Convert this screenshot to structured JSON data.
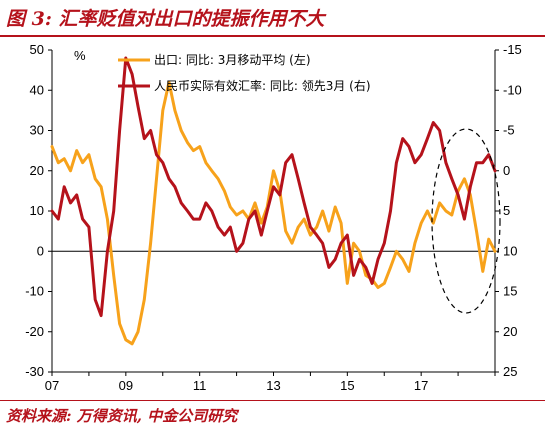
{
  "title": "图 3: 汇率贬值对出口的提振作用不大",
  "source": "资料来源: 万得资讯, 中金公司研究",
  "chart_data": {
    "type": "line",
    "unit_label": "%",
    "left_axis": {
      "ticks": [
        50,
        40,
        30,
        20,
        10,
        0,
        -10,
        -20,
        -30
      ],
      "range": [
        -30,
        50
      ]
    },
    "right_axis": {
      "ticks": [
        -15,
        -10,
        -5,
        0,
        5,
        10,
        15,
        20,
        25
      ],
      "range": [
        -15,
        25
      ],
      "inverted": true
    },
    "x_ticks": [
      "07",
      "09",
      "11",
      "13",
      "15",
      "17"
    ],
    "x_range": [
      2007.0,
      2019.0
    ],
    "colors": {
      "export": "#f7a21b",
      "reer": "#b5121b"
    },
    "series": [
      {
        "name": "出口: 同比: 3月移动平均 (左)",
        "axis": "left",
        "x": [
          2007.0,
          2007.17,
          2007.33,
          2007.5,
          2007.67,
          2007.83,
          2008.0,
          2008.17,
          2008.33,
          2008.5,
          2008.67,
          2008.83,
          2009.0,
          2009.17,
          2009.33,
          2009.5,
          2009.67,
          2009.83,
          2010.0,
          2010.17,
          2010.33,
          2010.5,
          2010.67,
          2010.83,
          2011.0,
          2011.17,
          2011.33,
          2011.5,
          2011.67,
          2011.83,
          2012.0,
          2012.17,
          2012.33,
          2012.5,
          2012.67,
          2012.83,
          2013.0,
          2013.17,
          2013.33,
          2013.5,
          2013.67,
          2013.83,
          2014.0,
          2014.17,
          2014.33,
          2014.5,
          2014.67,
          2014.83,
          2015.0,
          2015.17,
          2015.33,
          2015.5,
          2015.67,
          2015.83,
          2016.0,
          2016.17,
          2016.33,
          2016.5,
          2016.67,
          2016.83,
          2017.0,
          2017.17,
          2017.33,
          2017.5,
          2017.67,
          2017.83,
          2018.0,
          2018.17,
          2018.33,
          2018.5,
          2018.67,
          2018.83,
          2019.0
        ],
        "values": [
          26,
          22,
          23,
          20,
          25,
          22,
          24,
          18,
          16,
          8,
          -6,
          -18,
          -22,
          -23,
          -20,
          -12,
          2,
          18,
          35,
          42,
          35,
          30,
          27,
          25,
          26,
          22,
          20,
          18,
          15,
          11,
          9,
          10,
          8,
          12,
          7,
          11,
          20,
          15,
          5,
          2,
          6,
          8,
          4,
          6,
          10,
          5,
          11,
          7,
          -8,
          2,
          0,
          -6,
          -7,
          -9,
          -8,
          -4,
          0,
          -2,
          -5,
          2,
          7,
          10,
          7,
          12,
          10,
          9,
          15,
          18,
          14,
          5,
          -5,
          3,
          0
        ]
      },
      {
        "name": "人民币实际有效汇率: 同比: 领先3月 (右)",
        "axis": "right",
        "x": [
          2007.0,
          2007.17,
          2007.33,
          2007.5,
          2007.67,
          2007.83,
          2008.0,
          2008.17,
          2008.33,
          2008.5,
          2008.67,
          2008.83,
          2009.0,
          2009.17,
          2009.33,
          2009.5,
          2009.67,
          2009.83,
          2010.0,
          2010.17,
          2010.33,
          2010.5,
          2010.67,
          2010.83,
          2011.0,
          2011.17,
          2011.33,
          2011.5,
          2011.67,
          2011.83,
          2012.0,
          2012.17,
          2012.33,
          2012.5,
          2012.67,
          2012.83,
          2013.0,
          2013.17,
          2013.33,
          2013.5,
          2013.67,
          2013.83,
          2014.0,
          2014.17,
          2014.33,
          2014.5,
          2014.67,
          2014.83,
          2015.0,
          2015.17,
          2015.33,
          2015.5,
          2015.67,
          2015.83,
          2016.0,
          2016.17,
          2016.33,
          2016.5,
          2016.67,
          2016.83,
          2017.0,
          2017.17,
          2017.33,
          2017.5,
          2017.67,
          2017.83,
          2018.0,
          2018.17,
          2018.33,
          2018.5,
          2018.67,
          2018.83,
          2019.0
        ],
        "values": [
          5,
          6,
          2,
          4,
          3,
          6,
          7,
          16,
          18,
          10,
          5,
          -5,
          -14,
          -12,
          -8,
          -4,
          -5,
          -2,
          -1,
          1,
          2,
          4,
          5,
          6,
          6,
          4,
          5,
          7,
          8,
          7,
          10,
          9,
          6,
          5,
          8,
          5,
          2,
          3,
          -1,
          -2,
          1,
          4,
          7,
          8,
          9,
          12,
          11,
          9,
          8,
          13,
          11,
          12,
          14,
          11,
          9,
          5,
          -1,
          -4,
          -3,
          -1,
          -2,
          -4,
          -6,
          -5,
          -1,
          1,
          3,
          6,
          2,
          -1,
          -1,
          -2,
          0
        ]
      }
    ],
    "legend_placement": "top",
    "grid": false
  }
}
